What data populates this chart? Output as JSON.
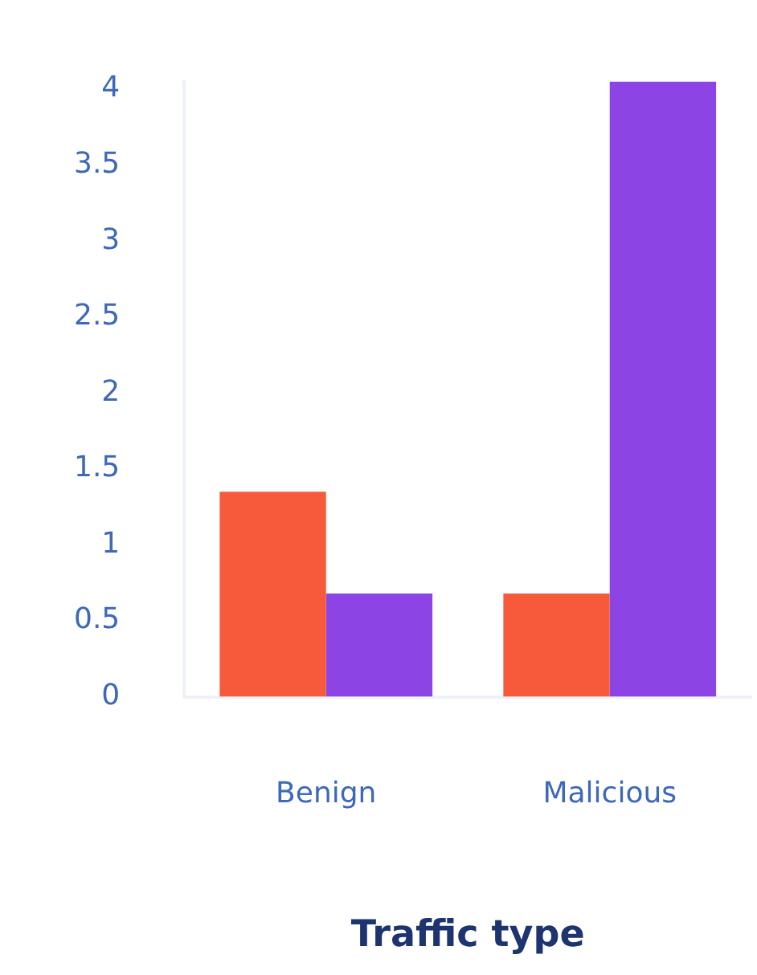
{
  "chart_data": {
    "type": "bar",
    "xlabel": "Traffic type",
    "categories": [
      "Benign",
      "Malicious"
    ],
    "series": [
      {
        "color": "#f75a3a",
        "values": [
          1.35,
          0.68
        ]
      },
      {
        "color": "#8c44e4",
        "values": [
          0.68,
          4.05
        ]
      }
    ],
    "ylim": [
      0,
      4.05
    ],
    "yticks": [
      0,
      0.5,
      1,
      1.5,
      2,
      2.5,
      3,
      3.5,
      4
    ],
    "grid": false,
    "legend": false
  }
}
